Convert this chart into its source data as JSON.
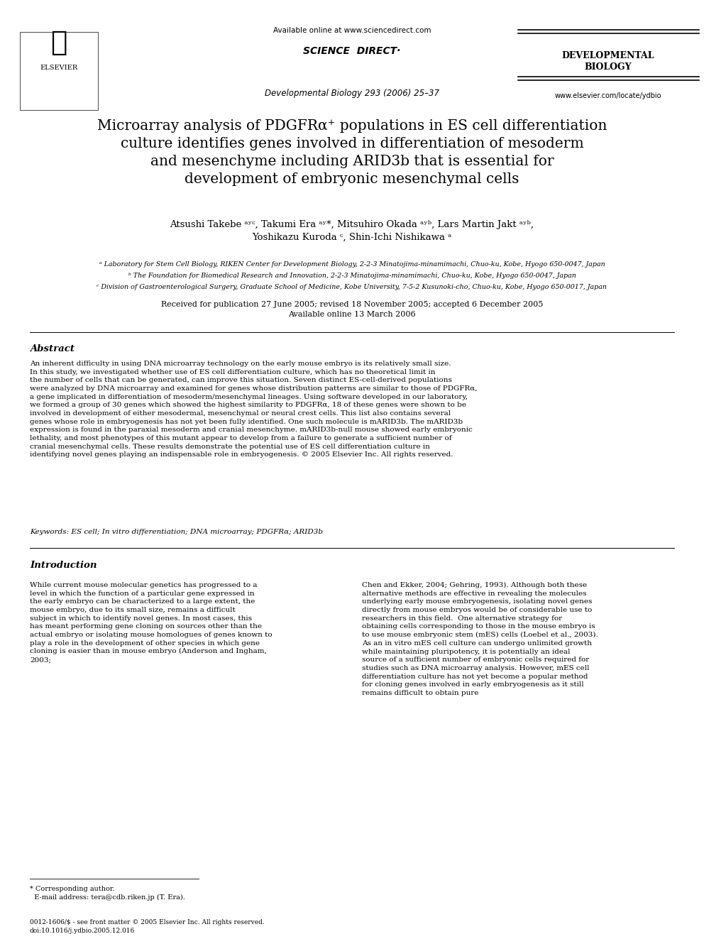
{
  "bg_color": "#ffffff",
  "header": {
    "available_online": "Available online at www.sciencedirect.com",
    "journal_ref": "Developmental Biology 293 (2006) 25–37",
    "journal_name_line1": "Developmental",
    "journal_name_line2": "Biology",
    "website": "www.elsevier.com/locate/ydbio",
    "elsevier_text": "ELSEVIER",
    "sciencedirect_text": "SCIENCE é DIRECT’"
  },
  "title": "Microarray analysis of PDGFRα⁺ populations in ES cell differentiation\nculture identifies genes involved in differentiation of mesoderm\nand mesenchyme including ARID3b that is essential for\ndevelopment of embryonic mesenchymal cells",
  "authors": "Atsushi Takebe ᵃʸᶜ, Takumi Era ᵃʸ*, Mitsuhiro Okada ᵃʸᵇ, Lars Martin Jakt ᵃʸᵇ,\nYoshikazu Kuroda ᶜ, Shin-Ichi Nishikawa ᵃ",
  "affiliations": [
    "ᵃ Laboratory for Stem Cell Biology, RIKEN Center for Development Biology, 2-2-3 Minatojima-minamimachi, Chuo-ku, Kobe, Hyogo 650-0047, Japan",
    "ᵇ The Foundation for Biomedical Research and Innovation, 2-2-3 Minatojima-minamimachi, Chuo-ku, Kobe, Hyogo 650-0047, Japan",
    "ᶜ Division of Gastroenterological Surgery, Graduate School of Medicine, Kobe University, 7-5-2 Kusunoki-cho, Chuo-ku, Kobe, Hyogo 650-0017, Japan"
  ],
  "dates": "Received for publication 27 June 2005; revised 18 November 2005; accepted 6 December 2005\nAvailable online 13 March 2006",
  "abstract_title": "Abstract",
  "abstract_text": "An inherent difficulty in using DNA microarray technology on the early mouse embryo is its relatively small size. In this study, we investigated whether use of ES cell differentiation culture, which has no theoretical limit in the number of cells that can be generated, can improve this situation. Seven distinct ES-cell-derived populations were analyzed by DNA microarray and examined for genes whose distribution patterns are similar to those of PDGFRα, a gene implicated in differentiation of mesoderm/mesenchymal lineages. Using software developed in our laboratory, we formed a group of 30 genes which showed the highest similarity to PDGFRα, 18 of these genes were shown to be involved in development of either mesodermal, mesenchymal or neural crest cells. This list also contains several genes whose role in embryogenesis has not yet been fully identified. One such molecule is mARID3b. The mARID3b expression is found in the paraxial mesoderm and cranial mesenchyme. mARID3b-null mouse showed early embryonic lethality, and most phenotypes of this mutant appear to develop from a failure to generate a sufficient number of cranial mesenchymal cells. These results demonstrate the potential use of ES cell differentiation culture in identifying novel genes playing an indispensable role in embryogenesis.\n© 2005 Elsevier Inc. All rights reserved.",
  "keywords": "Keywords: ES cell; In vitro differentiation; DNA microarray; PDGFRα; ARID3b",
  "intro_title": "Introduction",
  "intro_left": "While current mouse molecular genetics has progressed to a level in which the function of a particular gene expressed in the early embryo can be characterized to a large extent, the mouse embryo, due to its small size, remains a difficult subject in which to identify novel genes. In most cases, this has meant performing gene cloning on sources other than the actual embryo or isolating mouse homologues of genes known to play a role in the development of other species in which gene cloning is easier than in mouse embryo (Anderson and Ingham, 2003;",
  "intro_right": "Chen and Ekker, 2004; Gehring, 1993). Although both these alternative methods are effective in revealing the molecules underlying early mouse embryogenesis, isolating novel genes directly from mouse embryos would be of considerable use to researchers in this field.\n\nOne alternative strategy for obtaining cells corresponding to those in the mouse embryo is to use mouse embryonic stem (mES) cells (Loebel et al., 2003). As an in vitro mES cell culture can undergo unlimited growth while maintaining pluripotency, it is potentially an ideal source of a sufficient number of embryonic cells required for studies such as DNA microarray analysis. However, mES cell differentiation culture has not yet become a popular method for cloning genes involved in early embryogenesis as it still remains difficult to obtain pure",
  "footnote_corresponding": "* Corresponding author.\n  E-mail address: tera@cdb.riken.jp (T. Era).",
  "footer_issn": "0012-1606/$ - see front matter © 2005 Elsevier Inc. All rights reserved.\ndoi:10.1016/j.ydbio.2005.12.016"
}
